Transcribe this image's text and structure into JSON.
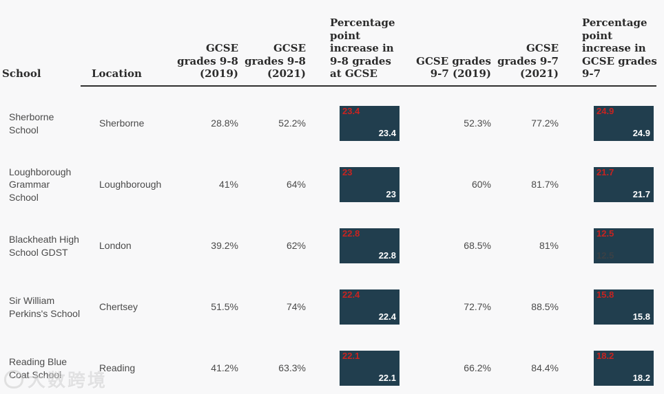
{
  "colors": {
    "background": "#f8f8f9",
    "bar_fill": "#213e4e",
    "bar_label_red": "#c82320",
    "bar_label_white": "#ffffff",
    "bar_label_muted": "#3a4045",
    "header_text": "#2b2b2b",
    "body_text": "#4a4a4a",
    "header_rule": "#2f2f2f"
  },
  "header": {
    "school": "School",
    "location": "Location",
    "g98_2019": "GCSE grades 9-8 (2019)",
    "g98_2021": "GCSE grades 9-8 (2021)",
    "pp98": "Percentage point increase in 9-8 grades at GCSE",
    "g97_2019": "GCSE grades 9-7 (2019)",
    "g97_2021": "GCSE grades 9-7 (2021)",
    "pp97": "Percentage point increase in GCSE grades 9-7"
  },
  "rows": [
    {
      "school": "Sherborne School",
      "location": "Sherborne",
      "g98_2019": "28.8%",
      "g98_2021": "52.2%",
      "pp98": {
        "top": "23.4",
        "bottom": "23.4"
      },
      "g97_2019": "52.3%",
      "g97_2021": "77.2%",
      "pp97": {
        "top": "24.9",
        "bottom": "24.9"
      }
    },
    {
      "school": "Loughborough Grammar School",
      "location": "Loughborough",
      "g98_2019": "41%",
      "g98_2021": "64%",
      "pp98": {
        "top": "23",
        "bottom": "23"
      },
      "g97_2019": "60%",
      "g97_2021": "81.7%",
      "pp97": {
        "top": "21.7",
        "bottom": "21.7"
      }
    },
    {
      "school": "Blackheath High School GDST",
      "location": "London",
      "g98_2019": "39.2%",
      "g98_2021": "62%",
      "pp98": {
        "top": "22.8",
        "bottom": "22.8"
      },
      "g97_2019": "68.5%",
      "g97_2021": "81%",
      "pp97": {
        "top": "12.5",
        "bottom": "12.5"
      }
    },
    {
      "school": "Sir William Perkins's School",
      "location": "Chertsey",
      "g98_2019": "51.5%",
      "g98_2021": "74%",
      "pp98": {
        "top": "22.4",
        "bottom": "22.4"
      },
      "g97_2019": "72.7%",
      "g97_2021": "88.5%",
      "pp97": {
        "top": "15.8",
        "bottom": "15.8"
      }
    },
    {
      "school": "Reading Blue Coat School",
      "location": "Reading",
      "g98_2019": "41.2%",
      "g98_2021": "63.3%",
      "pp98": {
        "top": "22.1",
        "bottom": "22.1"
      },
      "g97_2019": "66.2%",
      "g97_2021": "84.4%",
      "pp97": {
        "top": "18.2",
        "bottom": "18.2"
      }
    }
  ],
  "watermark": {
    "text": "大数跨境"
  },
  "chart_data": {
    "type": "table",
    "columns": [
      "School",
      "Location",
      "GCSE grades 9-8 (2019)",
      "GCSE grades 9-8 (2021)",
      "Percentage point increase in 9-8 grades at GCSE",
      "GCSE grades 9-7 (2019)",
      "GCSE grades 9-7 (2021)",
      "Percentage point increase in GCSE grades 9-7"
    ],
    "rows": [
      [
        "Sherborne School",
        "Sherborne",
        28.8,
        52.2,
        23.4,
        52.3,
        77.2,
        24.9
      ],
      [
        "Loughborough Grammar School",
        "Loughborough",
        41,
        64,
        23,
        60,
        81.7,
        21.7
      ],
      [
        "Blackheath High School GDST",
        "London",
        39.2,
        62,
        22.8,
        68.5,
        81,
        12.5
      ],
      [
        "Sir William Perkins's School",
        "Chertsey",
        51.5,
        74,
        22.4,
        72.7,
        88.5,
        15.8
      ],
      [
        "Reading Blue Coat School",
        "Reading",
        41.2,
        63.3,
        22.1,
        66.2,
        84.4,
        18.2
      ]
    ],
    "bar_columns": [
      {
        "column": "Percentage point increase in 9-8 grades at GCSE",
        "values": [
          23.4,
          23,
          22.8,
          22.4,
          22.1
        ],
        "bar_color": "#213e4e"
      },
      {
        "column": "Percentage point increase in GCSE grades 9-7",
        "values": [
          24.9,
          21.7,
          12.5,
          15.8,
          18.2
        ],
        "bar_color": "#213e4e"
      }
    ],
    "legend_position": "none",
    "grid": false
  }
}
